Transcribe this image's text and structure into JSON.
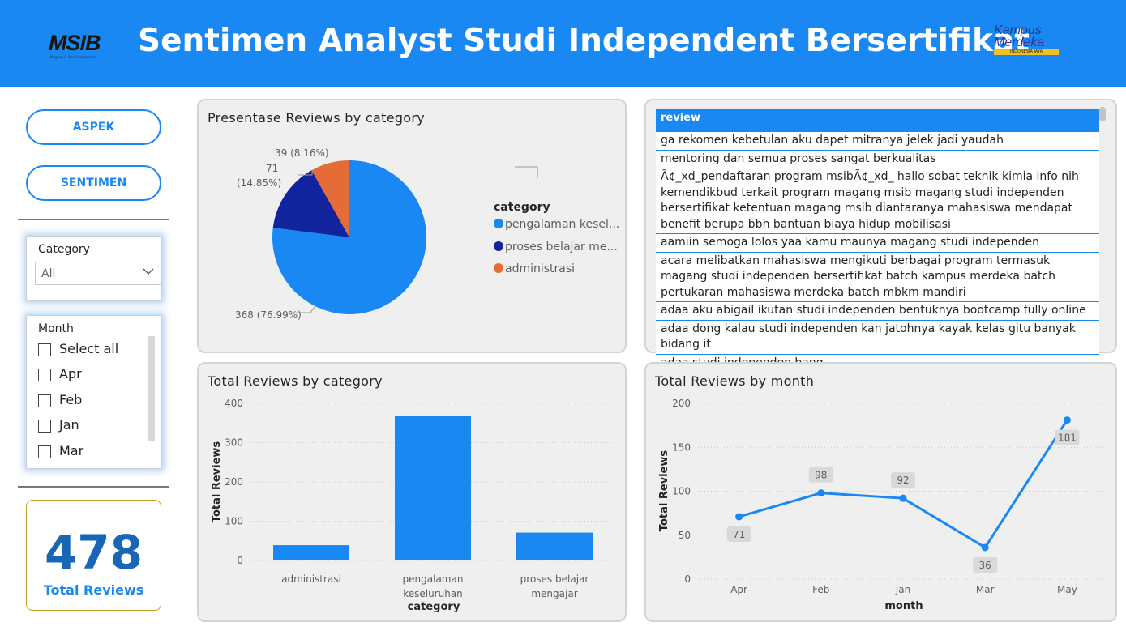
{
  "header": {
    "title": "Sentimen Analyst Studi Independent Bersertifikat",
    "logo_left": "MSIB",
    "logo_left_tagline": "Magang & Studi Independen",
    "logo_right_line1": "Kampus",
    "logo_right_line2": "Merdeka",
    "logo_right_tagline": "INDONESIA JAYA"
  },
  "nav": {
    "aspek_label": "ASPEK",
    "sentimen_label": "SENTIMEN"
  },
  "category_slicer": {
    "title": "Category",
    "selected": "All"
  },
  "month_slicer": {
    "title": "Month",
    "items": [
      "Select all",
      "Apr",
      "Feb",
      "Jan",
      "Mar"
    ]
  },
  "kpi": {
    "value": "478",
    "label": "Total Reviews"
  },
  "pie": {
    "title": "Presentase Reviews by category",
    "legend_title": "category",
    "legend_items": [
      "pengalaman kesel...",
      "proses belajar me...",
      "administrasi"
    ],
    "colors": [
      "#1a88f2",
      "#12239e",
      "#e66c37"
    ],
    "slice_labels": [
      "368 (76.99%)",
      "71",
      "(14.85%)",
      "39 (8.16%)"
    ]
  },
  "review_table": {
    "header": "review",
    "rows": [
      "ga rekomen kebetulan aku dapet mitranya jelek jadi yaudah",
      "mentoring dan semua proses sangat berkualitas",
      "Ã¢_xd_pendaftaran program msibÃ¢_xd_ hallo sobat teknik kimia info nih kemendikbud terkait program magang msib magang studi independen bersertifikat ketentuan magang msib diantaranya mahasiswa mendapat benefit berupa bbh bantuan biaya hidup mobilisasi",
      "aamiin semoga lolos yaa kamu maunya magang studi independen",
      "acara melibatkan mahasiswa mengikuti berbagai program termasuk magang studi independen bersertifikat batch kampus merdeka batch pertukaran mahasiswa merdeka batch mbkm mandiri",
      "adaa aku abigail ikutan studi independen bentuknya bootcamp fully online",
      "adaa dong kalau studi independen kan jatohnya kayak kelas gitu banyak bidang it",
      "adaa studi independen bang"
    ]
  },
  "chart_data": [
    {
      "type": "pie",
      "title": "Presentase Reviews by category",
      "categories": [
        "pengalaman keseluruhan",
        "proses belajar mengajar",
        "administrasi"
      ],
      "values": [
        368,
        71,
        39
      ],
      "percents": [
        76.99,
        14.85,
        8.16
      ],
      "legend_title": "category",
      "legend_position": "right"
    },
    {
      "type": "bar",
      "title": "Total Reviews by category",
      "categories": [
        "administrasi",
        "pengalaman keseluruhan",
        "proses belajar mengajar"
      ],
      "category_lines": [
        [
          "administrasi"
        ],
        [
          "pengalaman",
          "keseluruhan"
        ],
        [
          "proses belajar",
          "mengajar"
        ]
      ],
      "values": [
        39,
        368,
        71
      ],
      "xlabel": "category",
      "ylabel": "Total Reviews",
      "ylim": [
        0,
        400
      ],
      "yticks": [
        0,
        100,
        200,
        300,
        400
      ],
      "color": "#1a88f2",
      "grid": true
    },
    {
      "type": "line",
      "title": "Total Reviews by month",
      "x": [
        "Apr",
        "Feb",
        "Jan",
        "Mar",
        "May"
      ],
      "values": [
        71,
        98,
        92,
        36,
        181
      ],
      "xlabel": "month",
      "ylabel": "Total Reviews",
      "ylim": [
        0,
        200
      ],
      "yticks": [
        0,
        50,
        100,
        150,
        200
      ],
      "color": "#1a88f2",
      "data_labels": true,
      "grid": true
    }
  ]
}
